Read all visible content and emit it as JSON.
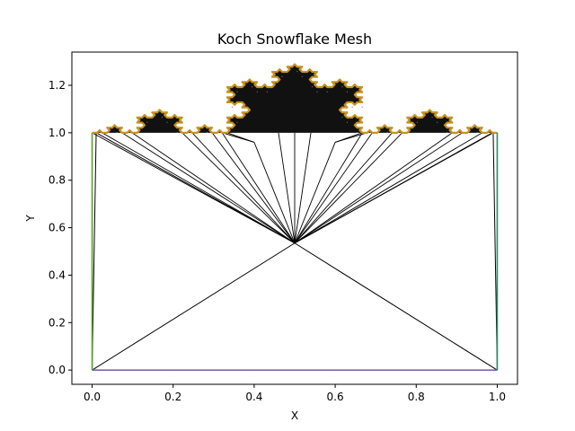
{
  "chart_data": {
    "type": "line",
    "title": "Koch Snowflake Mesh",
    "xlabel": "X",
    "ylabel": "Y",
    "xlim": [
      -0.05,
      1.05
    ],
    "ylim": [
      -0.06,
      1.34
    ],
    "grid": false,
    "legend": "none",
    "x_ticks": [
      0.0,
      0.2,
      0.4,
      0.6,
      0.8,
      1.0
    ],
    "x_tick_labels": [
      "0.0",
      "0.2",
      "0.4",
      "0.6",
      "0.8",
      "1.0"
    ],
    "y_ticks": [
      0.0,
      0.2,
      0.4,
      0.6,
      0.8,
      1.0,
      1.2
    ],
    "y_tick_labels": [
      "0.0",
      "0.2",
      "0.4",
      "0.6",
      "0.8",
      "1.0",
      "1.2"
    ],
    "mesh": {
      "curve_start": [
        0.0,
        1.0
      ],
      "curve_end": [
        1.0,
        1.0
      ],
      "koch_iterations": 4,
      "hub_vertex": [
        0.5,
        0.535
      ],
      "fan_vertices": [
        [
          0.4,
          0.96
        ],
        [
          0.6,
          0.96
        ]
      ],
      "domain_corners": [
        [
          0.0,
          0.0
        ],
        [
          1.0,
          0.0
        ],
        [
          1.0,
          1.0
        ],
        [
          0.0,
          1.0
        ]
      ]
    },
    "boundary_series": [
      {
        "segment": "bottom",
        "points": [
          [
            0.0,
            0.0
          ],
          [
            1.0,
            0.0
          ]
        ],
        "color": "#7b68b0"
      },
      {
        "segment": "left",
        "points": [
          [
            0.0,
            0.0
          ],
          [
            0.0,
            1.0
          ]
        ],
        "color": "#5aa02c"
      },
      {
        "segment": "right",
        "points": [
          [
            1.0,
            0.0
          ],
          [
            1.0,
            1.0
          ]
        ],
        "color": "#2e8b6e"
      },
      {
        "segment": "top-curve",
        "points": "koch",
        "color": "#d4a017"
      }
    ],
    "colors": {
      "mesh_edges": "#000000",
      "koch_boundary": "#c8921e"
    }
  }
}
